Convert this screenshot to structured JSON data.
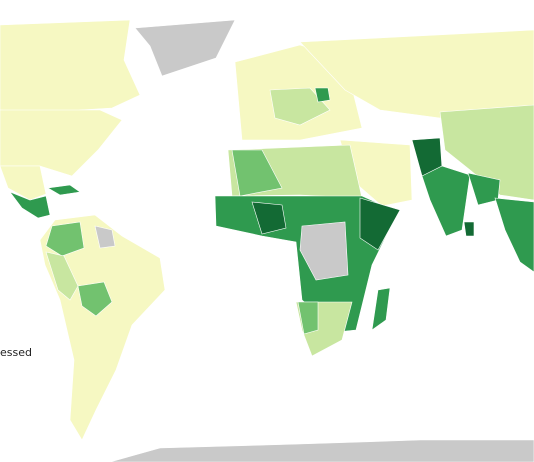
{
  "legend": {
    "label": "essed"
  }
}
